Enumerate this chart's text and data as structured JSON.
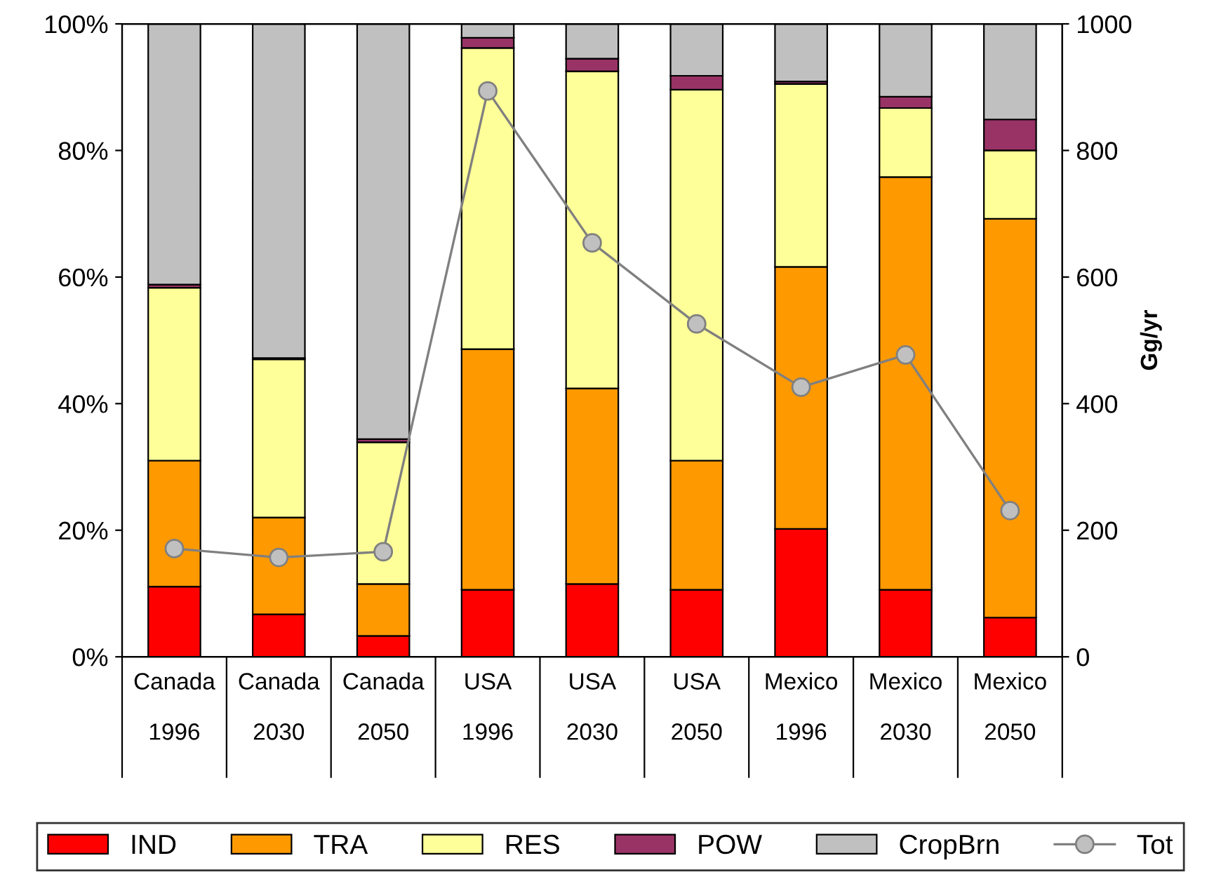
{
  "chart_data": {
    "type": "bar",
    "stacked": true,
    "categories": [
      "Canada\n\n1996",
      "Canada\n\n2030",
      "Canada\n\n2050",
      "USA\n\n1996",
      "USA\n\n2030",
      "USA\n\n2050",
      "Mexico\n\n1996",
      "Mexico\n\n2030",
      "Mexico\n\n2050"
    ],
    "series": [
      {
        "name": "IND",
        "color": "#ff0000",
        "values": [
          11.1,
          6.7,
          3.3,
          10.6,
          11.5,
          10.6,
          20.2,
          10.6,
          6.2
        ]
      },
      {
        "name": "TRA",
        "color": "#ff9900",
        "values": [
          19.9,
          15.3,
          8.2,
          38.0,
          30.9,
          20.4,
          41.4,
          65.2,
          63.0
        ]
      },
      {
        "name": "RES",
        "color": "#ffff99",
        "values": [
          27.3,
          25.0,
          22.4,
          47.6,
          50.1,
          58.6,
          28.9,
          10.9,
          10.8
        ]
      },
      {
        "name": "POW",
        "color": "#993366",
        "values": [
          0.5,
          0.2,
          0.5,
          1.6,
          2.0,
          2.2,
          0.4,
          1.8,
          4.9
        ]
      },
      {
        "name": "CropBrn",
        "color": "#c0c0c0",
        "values": [
          41.2,
          52.8,
          65.6,
          2.2,
          5.5,
          8.2,
          9.1,
          11.5,
          15.1
        ]
      },
      {
        "name": "Tot",
        "type": "line",
        "axis": "y2",
        "marker": "circle",
        "color": "#808080",
        "values": [
          171,
          157,
          166,
          894,
          654,
          526,
          426,
          477,
          231
        ]
      }
    ],
    "ylim": [
      0,
      100
    ],
    "yticks": [
      {
        "value": 0,
        "label": "0%"
      },
      {
        "value": 20,
        "label": "20%"
      },
      {
        "value": 40,
        "label": "40%"
      },
      {
        "value": 60,
        "label": "60%"
      },
      {
        "value": 80,
        "label": "80%"
      },
      {
        "value": 100,
        "label": "100%"
      }
    ],
    "y2lim": [
      0,
      1000
    ],
    "y2ticks": [
      0,
      200,
      400,
      600,
      800,
      1000
    ],
    "y2label": "Gg/yr",
    "legend": "bottom",
    "grid": false
  }
}
